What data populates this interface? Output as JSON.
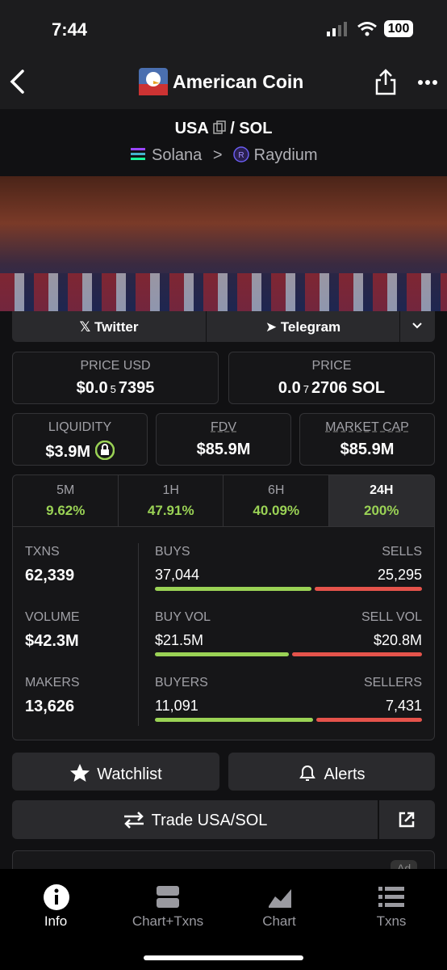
{
  "status_bar": {
    "time": "7:44",
    "battery": "100"
  },
  "header": {
    "title": "American Coin"
  },
  "pair": {
    "base": "USA",
    "quote": "/ SOL",
    "chain": "Solana",
    "dex": "Raydium"
  },
  "links": [
    "Twitter",
    "Telegram"
  ],
  "prices": [
    {
      "label": "PRICE USD",
      "value_parts": [
        "$0.0",
        "5",
        "7395"
      ]
    },
    {
      "label": "PRICE",
      "value_parts": [
        "0.0",
        "7",
        "2706 SOL"
      ]
    }
  ],
  "metrics": [
    {
      "label": "LIQUIDITY",
      "value": "$3.9M"
    },
    {
      "label": "FDV",
      "value": "$85.9M"
    },
    {
      "label": "MARKET CAP",
      "value": "$85.9M"
    }
  ],
  "timeframes": [
    {
      "label": "5M",
      "change": "9.62%"
    },
    {
      "label": "1H",
      "change": "47.91%"
    },
    {
      "label": "6H",
      "change": "40.09%"
    },
    {
      "label": "24H",
      "change": "200%"
    }
  ],
  "stats": [
    {
      "label": "TXNS",
      "value": "62,339",
      "buy_label": "BUYS",
      "buy_value": "37,044",
      "sell_label": "SELLS",
      "sell_value": "25,295"
    },
    {
      "label": "VOLUME",
      "value": "$42.3M",
      "buy_label": "BUY VOL",
      "buy_value": "$21.5M",
      "sell_label": "SELL VOL",
      "sell_value": "$20.8M"
    },
    {
      "label": "MAKERS",
      "value": "13,626",
      "buy_label": "BUYERS",
      "buy_value": "11,091",
      "sell_label": "SELLERS",
      "sell_value": "7,431"
    }
  ],
  "actions": {
    "watchlist": "Watchlist",
    "alerts": "Alerts",
    "trade": "Trade USA/SOL"
  },
  "ad": "Ad",
  "nav": [
    "Info",
    "Chart+Txns",
    "Chart",
    "Txns"
  ]
}
